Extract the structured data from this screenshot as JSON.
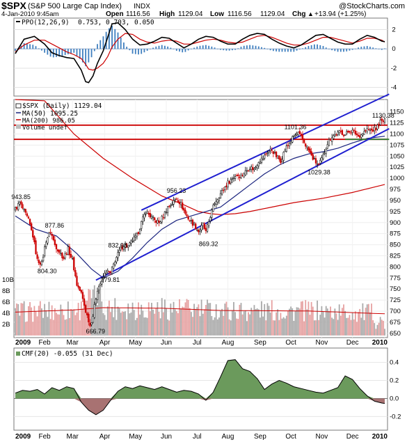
{
  "colors": {
    "up": "#000000",
    "down": "#cc0000",
    "ma50": "#1a237e",
    "ma200": "#cc0000",
    "channel": "#1f1fd0",
    "hline_red": "#cc0000",
    "hline_green": "#2e7d32",
    "cmf_pos": "#6b9a5c",
    "cmf_neg": "#a87272",
    "vol_up": "#a9a9a9",
    "vol_down": "#e6a0a0",
    "ppo_line": "#000000",
    "ppo_signal": "#cc0000",
    "ppo_hist": "#3f7fbf"
  },
  "header": {
    "symbol": "$SPX",
    "name": "(S&P 500 Large Cap Index)",
    "exchange": "INDX",
    "watermark": "@StockCharts.com",
    "date": "4-Jan-2010 9:45am",
    "open_label": "Open",
    "open": "1116.56",
    "high_label": "High",
    "high": "1129.04",
    "low_label": "Low",
    "low": "1116.56",
    "close": "1129.04",
    "chg_label": "Chg",
    "chg": "+13.94 (+1.25%)",
    "chg_arrow": "▲"
  },
  "ppo": {
    "label": "PPO(12,26,9)",
    "v1": "0.753,",
    "v2": "0.703,",
    "v3": "0.050"
  },
  "legend": {
    "spx": "$SPX (Daily) 1129.04",
    "ma50": "MA(50) 1095.25",
    "ma200": "MA(200) 986.05",
    "volume": "Volume undef"
  },
  "cmf": {
    "label": "CMF(20) -0.055 (31 Dec)"
  },
  "chart_data": [
    {
      "type": "line",
      "name": "PPO panel",
      "x": [
        0,
        6,
        13,
        20,
        25,
        30,
        35,
        40,
        45,
        48,
        50,
        53,
        56,
        60,
        63,
        66,
        70,
        75,
        80,
        85,
        90,
        95,
        100,
        105,
        110,
        115,
        120,
        125,
        130,
        135,
        140,
        145,
        150,
        155,
        160,
        165,
        170,
        175,
        180,
        185,
        190,
        195,
        200,
        205,
        210,
        215,
        220,
        225,
        230,
        235,
        240,
        245,
        250,
        252
      ],
      "series": [
        {
          "name": "PPO(12,26,9)",
          "values": [
            -0.5,
            1.0,
            1.3,
            0.5,
            -0.4,
            -0.7,
            -0.9,
            -1.0,
            -2.2,
            -3.4,
            -3.5,
            -2.8,
            -1.5,
            -0.2,
            1.2,
            2.6,
            2.7,
            2.0,
            1.0,
            0.4,
            0.5,
            0.8,
            1.2,
            1.1,
            0.6,
            0.1,
            0.5,
            1.0,
            1.3,
            1.2,
            0.8,
            0.5,
            0.5,
            1.0,
            1.4,
            1.6,
            1.5,
            1.0,
            0.6,
            0.3,
            0.1,
            0.4,
            0.9,
            1.4,
            1.5,
            1.1,
            0.7,
            0.5,
            0.5,
            1.0,
            1.4,
            1.2,
            0.8,
            0.75
          ]
        },
        {
          "name": "signal",
          "values": [
            -0.3,
            0.4,
            0.9,
            0.9,
            0.5,
            0.1,
            -0.3,
            -0.6,
            -1.0,
            -1.6,
            -2.1,
            -2.2,
            -2.0,
            -1.5,
            -0.8,
            0.2,
            1.0,
            1.6,
            1.5,
            1.0,
            0.7,
            0.6,
            0.8,
            0.9,
            0.8,
            0.5,
            0.5,
            0.7,
            0.9,
            1.0,
            0.9,
            0.7,
            0.6,
            0.7,
            1.0,
            1.3,
            1.4,
            1.2,
            0.9,
            0.6,
            0.4,
            0.4,
            0.6,
            0.9,
            1.2,
            1.2,
            1.0,
            0.8,
            0.6,
            0.8,
            1.1,
            1.1,
            0.9,
            0.7
          ]
        }
      ],
      "yticks": [
        2,
        0,
        -2,
        -4
      ],
      "ylim": [
        -4.6,
        2.9
      ]
    },
    {
      "type": "candlestick",
      "name": "price panel",
      "price_key": [
        [
          0,
          930
        ],
        [
          3,
          945
        ],
        [
          6,
          925
        ],
        [
          9,
          905
        ],
        [
          12,
          870
        ],
        [
          15,
          815
        ],
        [
          18,
          808
        ],
        [
          21,
          860
        ],
        [
          24,
          880
        ],
        [
          27,
          850
        ],
        [
          30,
          835
        ],
        [
          33,
          820
        ],
        [
          36,
          840
        ],
        [
          39,
          815
        ],
        [
          42,
          760
        ],
        [
          45,
          740
        ],
        [
          48,
          700
        ],
        [
          50,
          680
        ],
        [
          51,
          667
        ],
        [
          53,
          690
        ],
        [
          56,
          750
        ],
        [
          59,
          770
        ],
        [
          62,
          790
        ],
        [
          65,
          785
        ],
        [
          68,
          815
        ],
        [
          71,
          835
        ],
        [
          74,
          850
        ],
        [
          77,
          845
        ],
        [
          80,
          860
        ],
        [
          83,
          870
        ],
        [
          86,
          900
        ],
        [
          89,
          925
        ],
        [
          92,
          915
        ],
        [
          95,
          905
        ],
        [
          98,
          900
        ],
        [
          101,
          915
        ],
        [
          104,
          935
        ],
        [
          107,
          943
        ],
        [
          110,
          955
        ],
        [
          113,
          942
        ],
        [
          116,
          920
        ],
        [
          119,
          905
        ],
        [
          122,
          895
        ],
        [
          125,
          880
        ],
        [
          128,
          895
        ],
        [
          130,
          878
        ],
        [
          133,
          915
        ],
        [
          136,
          945
        ],
        [
          139,
          960
        ],
        [
          142,
          975
        ],
        [
          145,
          990
        ],
        [
          148,
          1000
        ],
        [
          151,
          1008
        ],
        [
          154,
          1005
        ],
        [
          157,
          1015
        ],
        [
          160,
          1025
        ],
        [
          163,
          1020
        ],
        [
          166,
          1040
        ],
        [
          169,
          1045
        ],
        [
          172,
          1060
        ],
        [
          175,
          1065
        ],
        [
          178,
          1050
        ],
        [
          181,
          1040
        ],
        [
          184,
          1065
        ],
        [
          187,
          1080
        ],
        [
          190,
          1095
        ],
        [
          193,
          1101
        ],
        [
          196,
          1087
        ],
        [
          199,
          1070
        ],
        [
          202,
          1050
        ],
        [
          205,
          1036
        ],
        [
          207,
          1029
        ],
        [
          210,
          1050
        ],
        [
          213,
          1080
        ],
        [
          216,
          1095
        ],
        [
          219,
          1100
        ],
        [
          222,
          1105
        ],
        [
          225,
          1098
        ],
        [
          228,
          1108
        ],
        [
          231,
          1105
        ],
        [
          234,
          1095
        ],
        [
          237,
          1102
        ],
        [
          240,
          1110
        ],
        [
          243,
          1108
        ],
        [
          246,
          1112
        ],
        [
          249,
          1128
        ],
        [
          252,
          1129
        ]
      ],
      "ma50": [
        [
          0,
          915
        ],
        [
          14,
          885
        ],
        [
          28,
          870
        ],
        [
          42,
          830
        ],
        [
          52,
          795
        ],
        [
          60,
          775
        ],
        [
          70,
          790
        ],
        [
          80,
          820
        ],
        [
          90,
          855
        ],
        [
          100,
          885
        ],
        [
          110,
          905
        ],
        [
          120,
          915
        ],
        [
          130,
          925
        ],
        [
          140,
          935
        ],
        [
          150,
          960
        ],
        [
          160,
          985
        ],
        [
          170,
          1010
        ],
        [
          180,
          1030
        ],
        [
          190,
          1045
        ],
        [
          200,
          1055
        ],
        [
          210,
          1060
        ],
        [
          220,
          1068
        ],
        [
          230,
          1080
        ],
        [
          240,
          1090
        ],
        [
          252,
          1095
        ]
      ],
      "ma200": [
        [
          0,
          1260
        ],
        [
          20,
          1175
        ],
        [
          40,
          1100
        ],
        [
          60,
          1045
        ],
        [
          80,
          1000
        ],
        [
          100,
          960
        ],
        [
          115,
          940
        ],
        [
          125,
          925
        ],
        [
          133,
          920
        ],
        [
          140,
          918
        ],
        [
          150,
          920
        ],
        [
          160,
          925
        ],
        [
          175,
          935
        ],
        [
          190,
          945
        ],
        [
          210,
          955
        ],
        [
          230,
          968
        ],
        [
          252,
          986
        ]
      ],
      "annotations": [
        {
          "label": "943.85",
          "x": 3,
          "y": 943.85
        },
        {
          "label": "877.86",
          "x": 24,
          "y": 877.86
        },
        {
          "label": "804.30",
          "x": 18,
          "y": 804.3
        },
        {
          "label": "832.98",
          "x": 70,
          "y": 832.98
        },
        {
          "label": "779.81",
          "x": 62,
          "y": 779.81
        },
        {
          "label": "666.79",
          "x": 51,
          "y": 666.79
        },
        {
          "label": "956.23",
          "x": 110,
          "y": 956.23
        },
        {
          "label": "869.32",
          "x": 130,
          "y": 869.32
        },
        {
          "label": "1101.36",
          "x": 193,
          "y": 1101.36
        },
        {
          "label": "1029.38",
          "x": 207,
          "y": 1029.38
        },
        {
          "label": "1130.38",
          "x": 251,
          "y": 1130.38
        }
      ],
      "channel_lines": [
        {
          "from": [
            86,
            928
          ],
          "to": [
            255,
            1190
          ]
        },
        {
          "from": [
            55,
            770
          ],
          "to": [
            255,
            1112
          ]
        }
      ],
      "horizontal_lines": [
        {
          "y": 1120,
          "color": "red"
        },
        {
          "y": 1088,
          "color": "red"
        },
        {
          "y": 1088,
          "color": "green",
          "x_from": 225,
          "x_to": 255
        }
      ],
      "yticks": [
        1150,
        1125,
        1100,
        1075,
        1050,
        1025,
        1000,
        975,
        950,
        925,
        900,
        875,
        850,
        825,
        800,
        775,
        750,
        725,
        700,
        675,
        650
      ],
      "ylim": [
        645,
        1170
      ],
      "volume": {
        "ticks": [
          "10B",
          "8B",
          "6B",
          "4B",
          "2B"
        ],
        "ylim": [
          0,
          13
        ],
        "avg": [
          [
            0,
            4.2
          ],
          [
            40,
            4.6
          ],
          [
            60,
            5.0
          ],
          [
            100,
            4.9
          ],
          [
            140,
            4.5
          ],
          [
            200,
            4.4
          ],
          [
            252,
            3.9
          ]
        ]
      }
    },
    {
      "type": "area",
      "name": "CMF panel",
      "x": [
        0,
        5,
        10,
        15,
        20,
        25,
        30,
        35,
        40,
        45,
        50,
        55,
        60,
        65,
        70,
        75,
        80,
        85,
        90,
        95,
        100,
        105,
        110,
        115,
        120,
        125,
        130,
        135,
        140,
        145,
        150,
        155,
        160,
        165,
        170,
        175,
        180,
        185,
        190,
        195,
        200,
        205,
        210,
        215,
        220,
        225,
        230,
        235,
        240,
        245,
        250,
        252
      ],
      "values": [
        0.06,
        0.09,
        0.08,
        0.1,
        0.05,
        0.12,
        0.09,
        0.13,
        0.11,
        -0.04,
        -0.13,
        -0.18,
        -0.13,
        -0.02,
        0.08,
        0.13,
        0.11,
        0.14,
        0.12,
        0.1,
        0.13,
        0.1,
        0.07,
        0.09,
        0.08,
        0.05,
        -0.02,
        0.07,
        0.24,
        0.42,
        0.43,
        0.33,
        0.3,
        0.22,
        0.1,
        0.16,
        0.2,
        0.17,
        0.13,
        0.11,
        0.09,
        0.07,
        0.06,
        0.09,
        0.12,
        0.25,
        0.21,
        0.11,
        0.03,
        -0.03,
        -0.05,
        -0.055
      ],
      "yticks": [
        0.4,
        0.2,
        0.0,
        -0.2
      ],
      "ylim": [
        -0.32,
        0.52
      ]
    }
  ],
  "x_axis": {
    "labels": [
      "2009",
      "Feb",
      "Mar",
      "Apr",
      "May",
      "Jun",
      "Jul",
      "Aug",
      "Sep",
      "Oct",
      "Nov",
      "Dec",
      "2010"
    ],
    "x": [
      0,
      20,
      39,
      61,
      82,
      103,
      124,
      145,
      167,
      188,
      209,
      230,
      252
    ],
    "bold": [
      "2009",
      "2010"
    ]
  }
}
